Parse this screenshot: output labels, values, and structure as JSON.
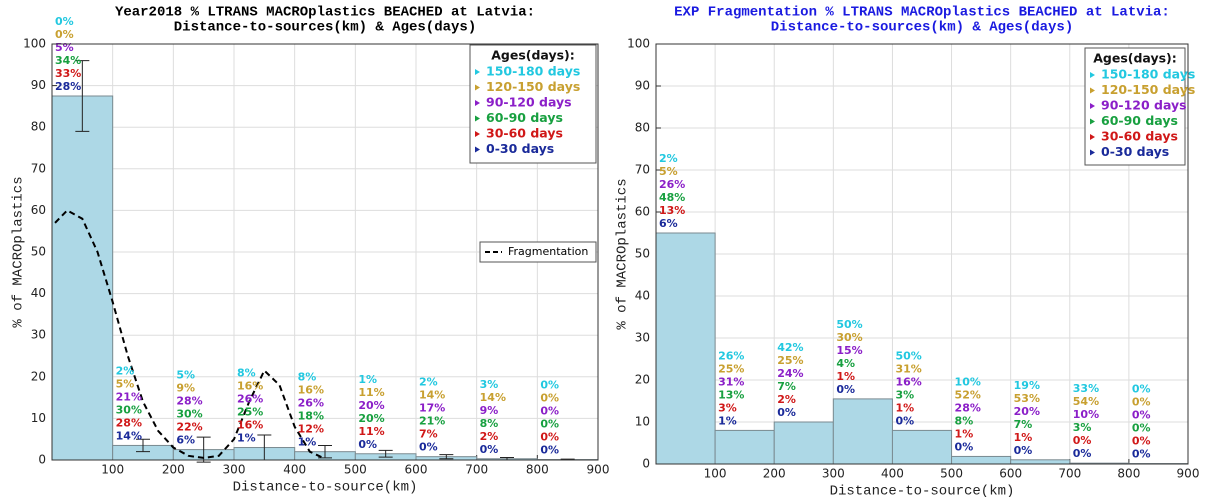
{
  "chart_data": [
    {
      "type": "histogram",
      "title": [
        "Year2018  % LTRANS MACROplastics BEACHED at Latvia:",
        "Distance-to-sources(km) & Ages(days)"
      ],
      "title_color": "#000000",
      "xlabel": "Distance-to-source(km)",
      "ylabel": "% of MACROplastics",
      "bins": [
        0,
        100,
        200,
        300,
        400,
        500,
        600,
        700,
        800,
        900
      ],
      "values": [
        87.5,
        3.5,
        2.5,
        3,
        2,
        1.5,
        0.8,
        0.3,
        0.1
      ],
      "errors": [
        8.5,
        1.5,
        3,
        3,
        1.5,
        0.8,
        0.5,
        0.3,
        0.1
      ],
      "color": "#add8e6",
      "xlim": [
        0,
        900
      ],
      "xticks": [
        100,
        200,
        300,
        400,
        500,
        600,
        700,
        800,
        900
      ],
      "ylim": [
        0,
        100
      ],
      "yticks": [
        0,
        10,
        20,
        30,
        40,
        50,
        60,
        70,
        80,
        90,
        100
      ],
      "grid": true,
      "lines": [
        {
          "name": "Fragmentation",
          "color": "#000000",
          "x": [
            5,
            25,
            50,
            75,
            100,
            125,
            150,
            175,
            200,
            225,
            250,
            275,
            300,
            325,
            350,
            375,
            400,
            425,
            450
          ],
          "values": [
            57,
            60,
            58,
            50,
            38,
            25,
            14,
            7,
            3,
            1,
            0.5,
            1,
            5,
            14,
            21.5,
            18,
            8,
            2,
            0.3
          ]
        }
      ],
      "legend_title": "Ages(days):",
      "age_series": [
        {
          "name": "150-180 days",
          "color": "#22c8e0",
          "values": [
            0,
            2,
            5,
            8,
            8,
            1,
            2,
            3,
            0
          ],
          "value_labels": [
            "0%",
            "2%",
            "5%",
            "8%",
            "8%",
            "1%",
            "2%",
            "3%",
            "0%"
          ]
        },
        {
          "name": "120-150 days",
          "color": "#c8a030",
          "values": [
            0,
            5,
            9,
            16,
            16,
            11,
            14,
            14,
            0
          ],
          "value_labels": [
            "0%",
            "5%",
            "9%",
            "16%",
            "16%",
            "11%",
            "14%",
            "14%",
            "0%"
          ]
        },
        {
          "name": "90-120 days",
          "color": "#8b1fc8",
          "values": [
            5,
            21,
            28,
            26,
            26,
            20,
            17,
            9,
            0
          ],
          "value_labels": [
            "5%",
            "21%",
            "28%",
            "26%",
            "26%",
            "20%",
            "17%",
            "9%",
            "0%"
          ]
        },
        {
          "name": "60-90 days",
          "color": "#18a040",
          "values": [
            34,
            30,
            30,
            25,
            18,
            20,
            21,
            8,
            0
          ],
          "value_labels": [
            "34%",
            "30%",
            "30%",
            "25%",
            "18%",
            "20%",
            "21%",
            "8%",
            "0%"
          ]
        },
        {
          "name": "30-60 days",
          "color": "#d01818",
          "values": [
            33,
            28,
            22,
            16,
            12,
            11,
            7,
            2,
            0
          ],
          "value_labels": [
            "33%",
            "28%",
            "22%",
            "16%",
            "12%",
            "11%",
            "7%",
            "2%",
            "0%"
          ]
        },
        {
          "name": "0-30 days",
          "color": "#1a2a9a",
          "values": [
            28,
            14,
            6,
            1,
            1,
            0,
            0,
            0,
            0
          ],
          "value_labels": [
            "28%",
            "14%",
            "6%",
            "1%",
            "1%",
            "0%",
            "0%",
            "0%",
            "0%"
          ]
        }
      ]
    },
    {
      "type": "histogram",
      "title": [
        "EXP Fragmentation  % LTRANS MACROplastics BEACHED at Latvia:",
        "Distance-to-sources(km) & Ages(days)"
      ],
      "title_color": "#1a1ae0",
      "xlabel": "Distance-to-source(km)",
      "ylabel": "% of MACROplastics",
      "bins": [
        0,
        100,
        200,
        300,
        400,
        500,
        600,
        700,
        800,
        900
      ],
      "values": [
        55,
        8,
        10,
        15.5,
        8,
        1.8,
        1,
        0.2,
        0.1
      ],
      "color": "#add8e6",
      "xlim": [
        0,
        900
      ],
      "xticks": [
        100,
        200,
        300,
        400,
        500,
        600,
        700,
        800,
        900
      ],
      "ylim": [
        0,
        100
      ],
      "yticks": [
        0,
        10,
        20,
        30,
        40,
        50,
        60,
        70,
        80,
        90,
        100
      ],
      "grid": true,
      "legend_title": "Ages(days):",
      "age_series": [
        {
          "name": "150-180 days",
          "color": "#22c8e0",
          "values": [
            2,
            26,
            42,
            50,
            50,
            10,
            19,
            33,
            0
          ],
          "value_labels": [
            "2%",
            "26%",
            "42%",
            "50%",
            "50%",
            "10%",
            "19%",
            "33%",
            "0%"
          ]
        },
        {
          "name": "120-150 days",
          "color": "#c8a030",
          "values": [
            5,
            25,
            25,
            30,
            31,
            52,
            53,
            54,
            0
          ],
          "value_labels": [
            "5%",
            "25%",
            "25%",
            "30%",
            "31%",
            "52%",
            "53%",
            "54%",
            "0%"
          ]
        },
        {
          "name": "90-120 days",
          "color": "#8b1fc8",
          "values": [
            26,
            31,
            24,
            15,
            16,
            28,
            20,
            10,
            0
          ],
          "value_labels": [
            "26%",
            "31%",
            "24%",
            "15%",
            "16%",
            "28%",
            "20%",
            "10%",
            "0%"
          ]
        },
        {
          "name": "60-90 days",
          "color": "#18a040",
          "values": [
            48,
            13,
            7,
            4,
            3,
            8,
            7,
            3,
            0
          ],
          "value_labels": [
            "48%",
            "13%",
            "7%",
            "4%",
            "3%",
            "8%",
            "7%",
            "3%",
            "0%"
          ]
        },
        {
          "name": "30-60 days",
          "color": "#d01818",
          "values": [
            13,
            3,
            2,
            1,
            1,
            1,
            1,
            0,
            0
          ],
          "value_labels": [
            "13%",
            "3%",
            "2%",
            "1%",
            "1%",
            "1%",
            "1%",
            "0%",
            "0%"
          ]
        },
        {
          "name": "0-30 days",
          "color": "#1a2a9a",
          "values": [
            6,
            1,
            0,
            0,
            0,
            0,
            0,
            0,
            0
          ],
          "value_labels": [
            "6%",
            "1%",
            "0%",
            "0%",
            "0%",
            "0%",
            "0%",
            "0%",
            "0%"
          ]
        }
      ]
    }
  ]
}
